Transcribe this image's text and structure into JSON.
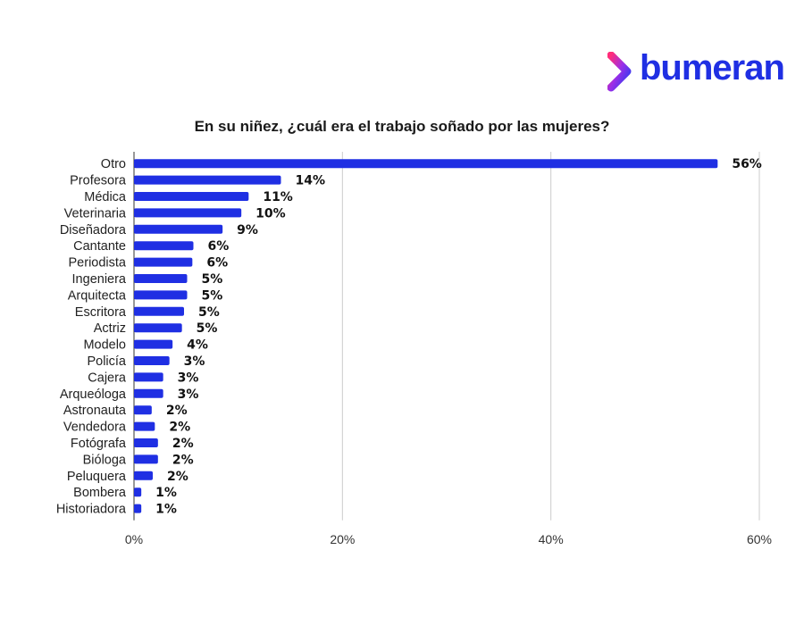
{
  "brand": {
    "name": "bumeran",
    "color": "#1f2fe3"
  },
  "chart_data": {
    "type": "bar",
    "orientation": "horizontal",
    "title": "En su niñez, ¿cuál era el trabajo soñado por las mujeres?",
    "categories": [
      "Otro",
      "Profesora",
      "Médica",
      "Veterinaria",
      "Diseñadora",
      "Cantante",
      "Periodista",
      "Ingeniera",
      "Arquitecta",
      "Escritora",
      "Actriz",
      "Modelo",
      "Policía",
      "Cajera",
      "Arqueóloga",
      "Astronauta",
      "Vendedora",
      "Fotógrafa",
      "Bióloga",
      "Peluquera",
      "Bombera",
      "Historiadora"
    ],
    "values": [
      56,
      14,
      11,
      10,
      9,
      6,
      6,
      5,
      5,
      5,
      5,
      4,
      3,
      3,
      3,
      2,
      2,
      2,
      2,
      2,
      1,
      1
    ],
    "bar_values": [
      56,
      14.1,
      11,
      10.3,
      8.5,
      5.7,
      5.6,
      5.1,
      5.1,
      4.8,
      4.6,
      3.7,
      3.4,
      2.8,
      2.8,
      1.7,
      2.0,
      2.3,
      2.3,
      1.8,
      0.7,
      0.7
    ],
    "labels": [
      "56%",
      "14%",
      "11%",
      "10%",
      "9%",
      "6%",
      "6%",
      "5%",
      "5%",
      "5%",
      "5%",
      "4%",
      "3%",
      "3%",
      "3%",
      "2%",
      "2%",
      "2%",
      "2%",
      "2%",
      "1%",
      "1%"
    ],
    "xlim": [
      0,
      60
    ],
    "xticks": [
      0,
      20,
      40,
      60
    ],
    "xtick_labels": [
      "0%",
      "20%",
      "40%",
      "60%"
    ],
    "bar_color": "#1f2fe3",
    "grid": true
  }
}
